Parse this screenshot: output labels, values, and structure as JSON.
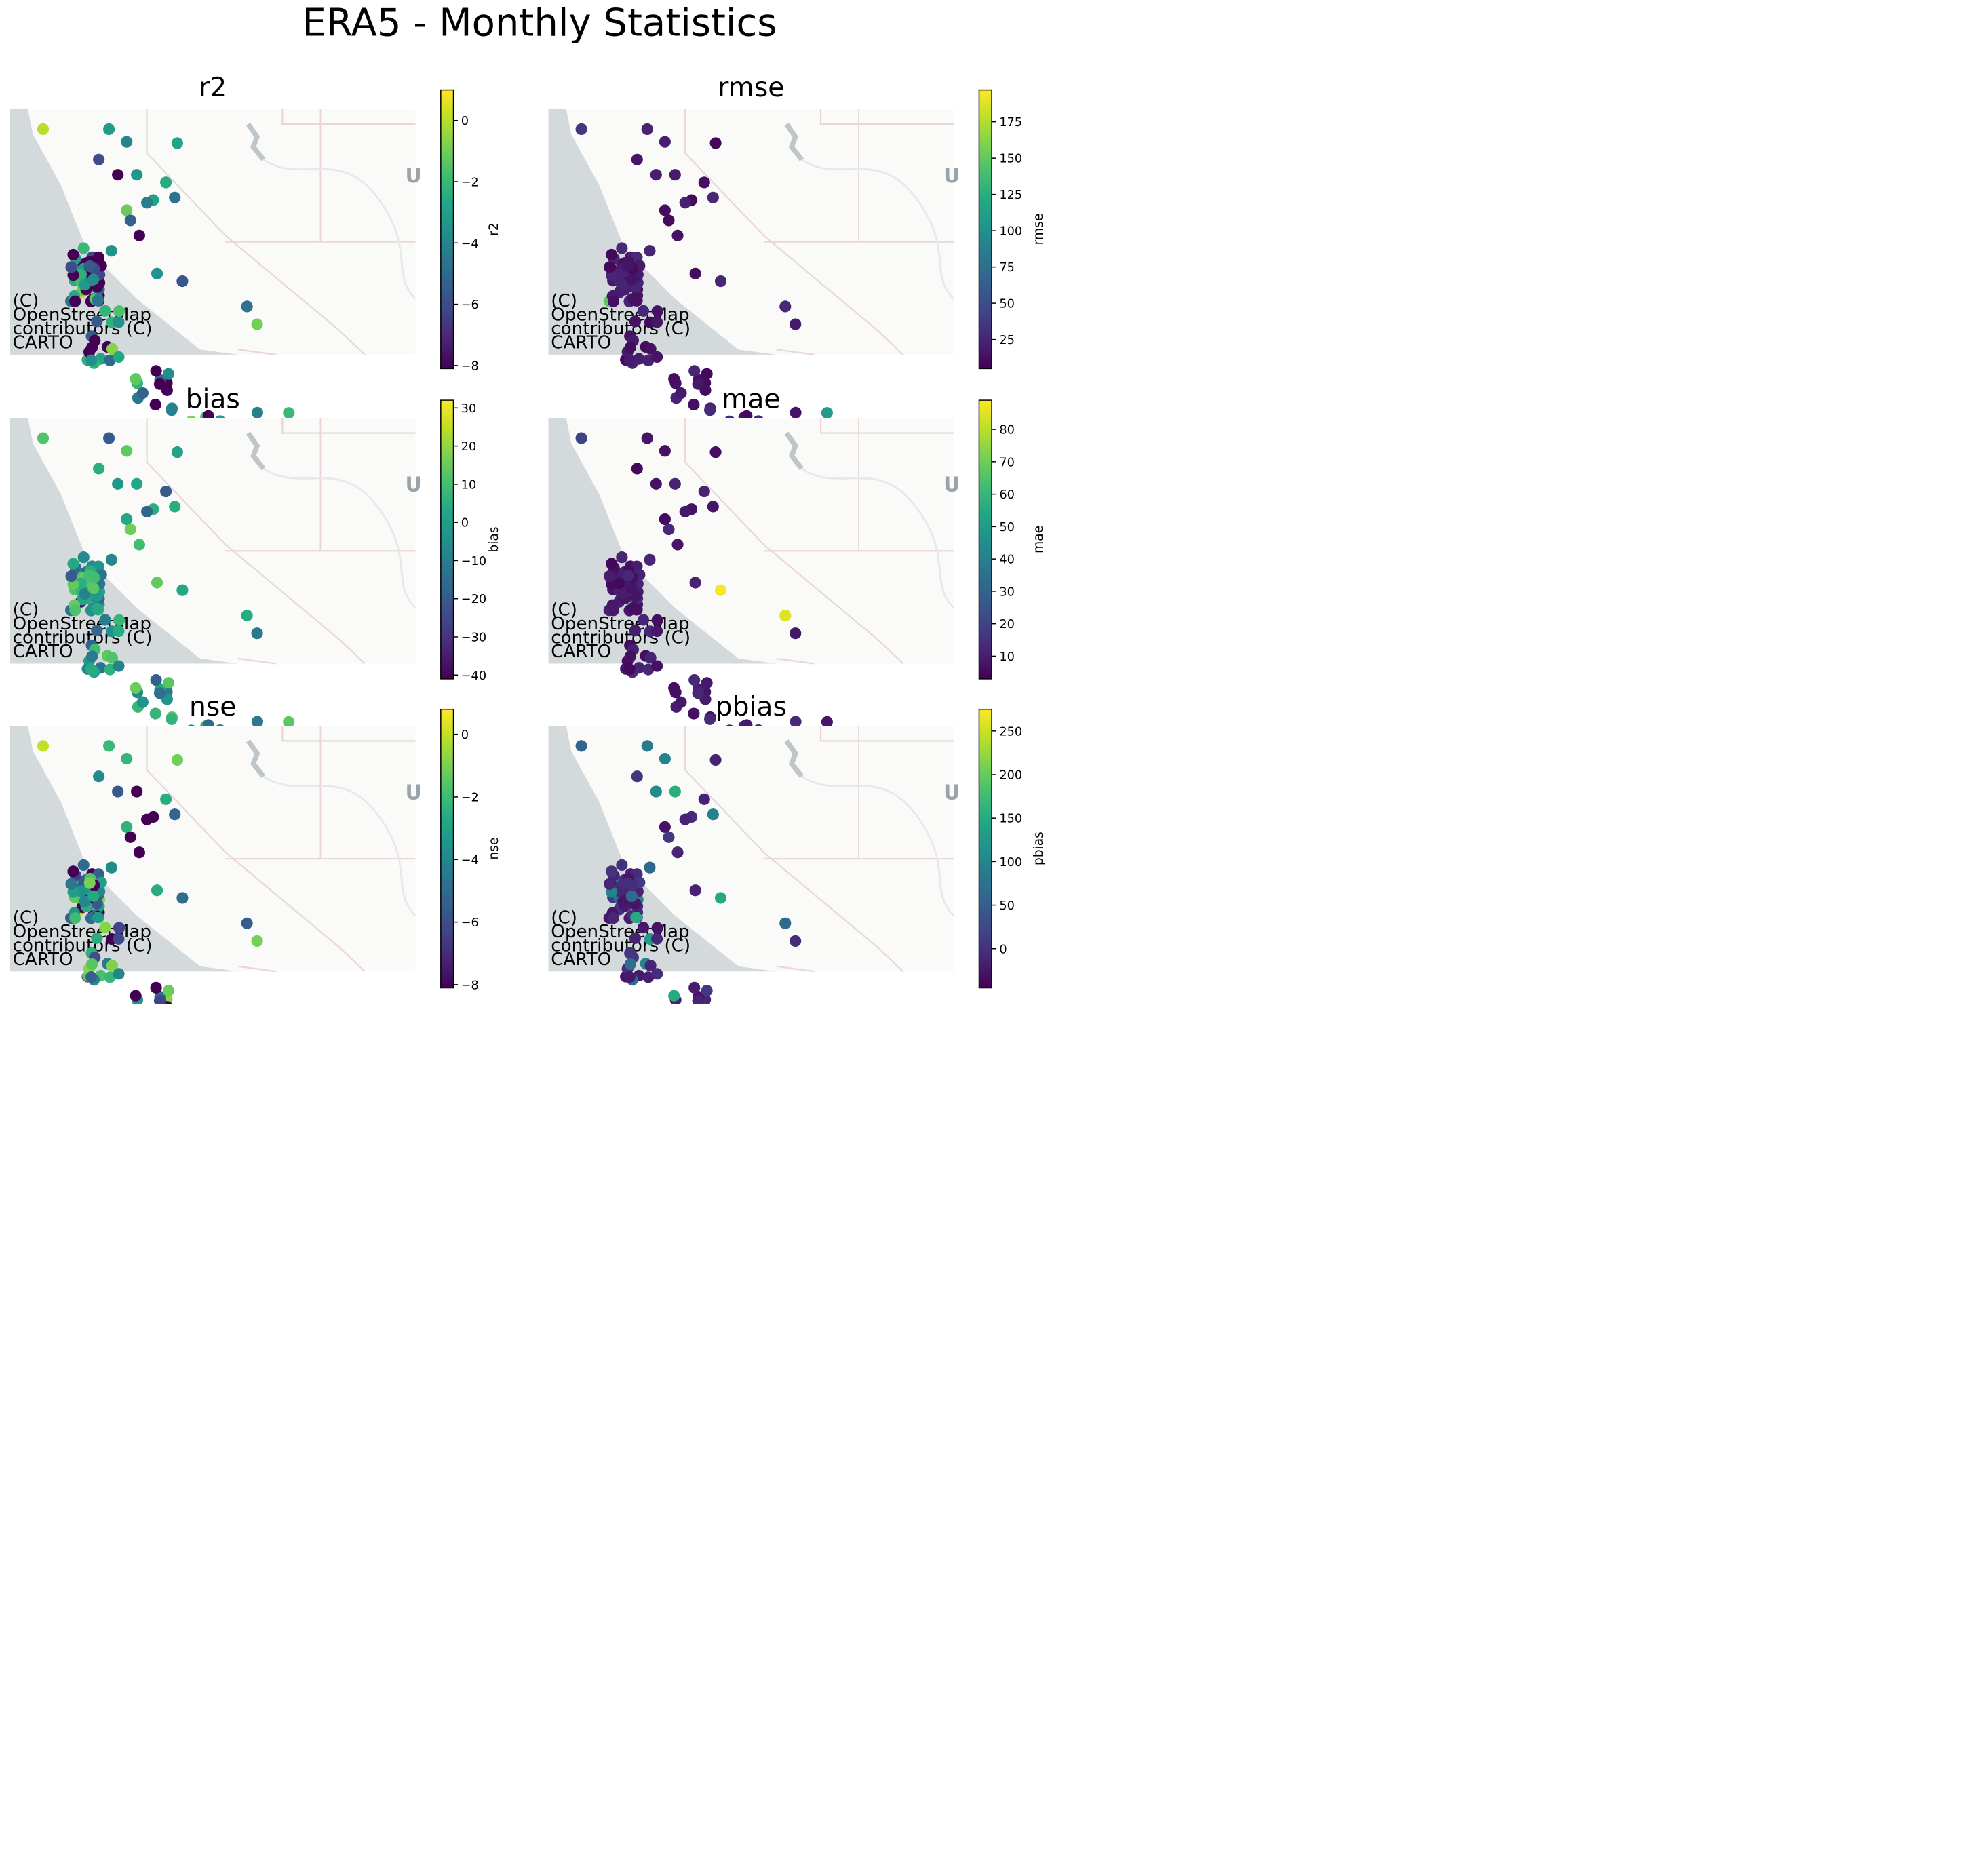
{
  "figure_title": "ERA5 - Monthly Statistics",
  "attribution": [
    "(C)",
    "OpenStreetMap",
    "contributors (C)",
    "CARTO"
  ],
  "basemap_label": "U",
  "colormap": "viridis",
  "colors": {
    "ocean": "#d4dadc",
    "land": "#fafaf8",
    "boundary": "#ead6d8",
    "river": "#e6e8ea"
  },
  "panels": [
    {
      "id": "r2",
      "title": "r2",
      "colorbar_label": "r2",
      "range": [
        -8.1,
        1.0
      ],
      "ticks": [
        0,
        -2,
        -4,
        -6,
        -8
      ],
      "tick_labels": [
        "0",
        "−2",
        "−4",
        "−6",
        "−8"
      ],
      "color_rule": "r2",
      "special": [
        [
          27,
          0.0
        ],
        [
          1,
          0.0
        ]
      ]
    },
    {
      "id": "rmse",
      "title": "rmse",
      "colorbar_label": "rmse",
      "range": [
        5,
        197
      ],
      "ticks": [
        175,
        150,
        125,
        100,
        75,
        50,
        25
      ],
      "tick_labels": [
        "175",
        "150",
        "125",
        "100",
        "75",
        "50",
        "25"
      ],
      "color_rule": "error",
      "special": [
        [
          41,
          197
        ],
        [
          21,
          110
        ],
        [
          24,
          150
        ],
        [
          1,
          35
        ]
      ]
    },
    {
      "id": "bias",
      "title": "bias",
      "colorbar_label": "bias",
      "range": [
        -41,
        32
      ],
      "ticks": [
        30,
        20,
        10,
        0,
        -10,
        -20,
        -30,
        -40
      ],
      "tick_labels": [
        "30",
        "20",
        "10",
        "0",
        "−10",
        "−20",
        "−30",
        "−40"
      ],
      "color_rule": "bias",
      "special": [
        [
          30,
          -36
        ],
        [
          27,
          -38
        ],
        [
          1,
          12
        ]
      ]
    },
    {
      "id": "mae",
      "title": "mae",
      "colorbar_label": "mae",
      "range": [
        3,
        89
      ],
      "ticks": [
        80,
        70,
        60,
        50,
        40,
        30,
        20,
        10
      ],
      "tick_labels": [
        "80",
        "70",
        "60",
        "50",
        "40",
        "30",
        "20",
        "10"
      ],
      "color_rule": "error",
      "special": [
        [
          18,
          88
        ],
        [
          19,
          85
        ],
        [
          44,
          55
        ],
        [
          1,
          20
        ]
      ]
    },
    {
      "id": "nse",
      "title": "nse",
      "colorbar_label": "nse",
      "range": [
        -8.1,
        0.8
      ],
      "ticks": [
        0,
        -2,
        -4,
        -6,
        -8
      ],
      "tick_labels": [
        "0",
        "−2",
        "−4",
        "−6",
        "−8"
      ],
      "color_rule": "r2",
      "special": [
        [
          27,
          0.0
        ],
        [
          1,
          0.0
        ]
      ]
    },
    {
      "id": "pbias",
      "title": "pbias",
      "colorbar_label": "pbias",
      "range": [
        -45,
        275
      ],
      "ticks": [
        250,
        200,
        150,
        100,
        50,
        0
      ],
      "tick_labels": [
        "250",
        "200",
        "150",
        "100",
        "50",
        "0"
      ],
      "color_rule": "pbias",
      "special": [
        [
          120,
          270
        ],
        [
          138,
          270
        ],
        [
          119,
          215
        ],
        [
          131,
          200
        ],
        [
          132,
          195
        ],
        [
          118,
          140
        ],
        [
          1,
          60
        ]
      ]
    }
  ]
}
